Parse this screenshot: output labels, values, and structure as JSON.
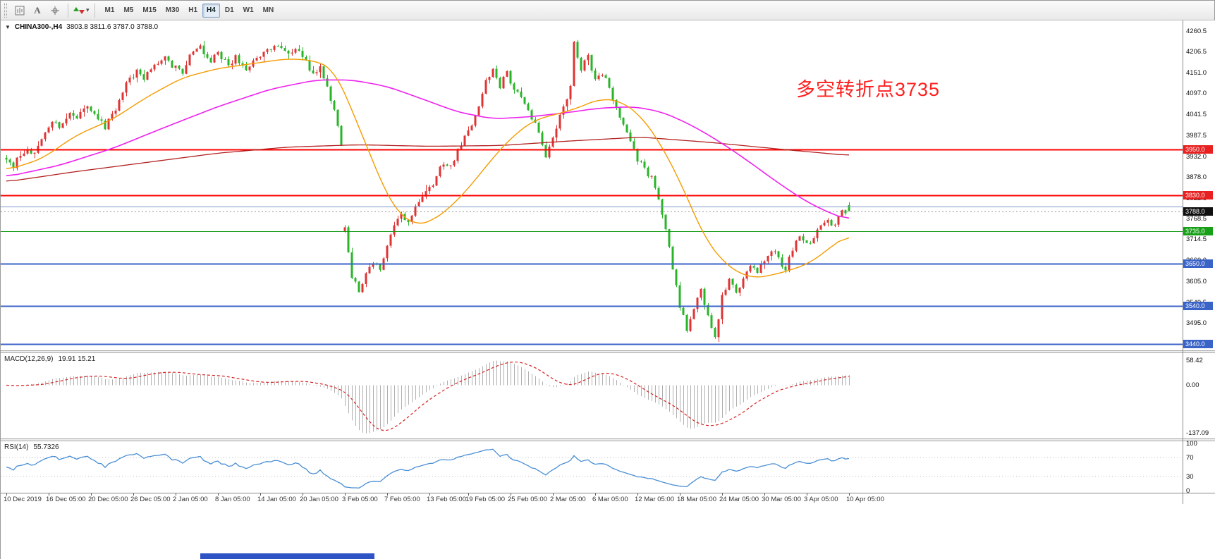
{
  "toolbar": {
    "timeframes": [
      "M1",
      "M5",
      "M15",
      "M30",
      "H1",
      "H4",
      "D1",
      "W1",
      "MN"
    ],
    "active_timeframe": "H4"
  },
  "header": {
    "collapse_icon": "▼",
    "symbol": "CHINA300-,H4",
    "quote": "3803.8 3811.6 3787.0 3788.0"
  },
  "annotation": {
    "text": "多空转折点3735",
    "color": "#ff1f1f"
  },
  "price_axis": {
    "ticks": [
      4260.5,
      4206.5,
      4151.0,
      4097.0,
      4041.5,
      3987.5,
      3932.0,
      3878.0,
      3822.5,
      3768.5,
      3714.5,
      3660.0,
      3605.0,
      3549.5,
      3495.0,
      3440.0
    ],
    "badges": [
      {
        "label": "3950.0",
        "price": 3950.0,
        "bg": "#e82020"
      },
      {
        "label": "3830.0",
        "price": 3830.0,
        "bg": "#e82020"
      },
      {
        "label": "3788.0",
        "price": 3788.0,
        "bg": "#101010"
      },
      {
        "label": "3735.0",
        "price": 3735.0,
        "bg": "#17a017"
      },
      {
        "label": "3650.0",
        "price": 3650.0,
        "bg": "#3a63c8"
      },
      {
        "label": "3540.0",
        "price": 3540.0,
        "bg": "#3a63c8"
      },
      {
        "label": "3440.0",
        "price": 3440.0,
        "bg": "#3a63c8"
      }
    ]
  },
  "chart_data": {
    "type": "candlestick",
    "symbol": "CHINA300-",
    "timeframe": "H4",
    "bars": 240,
    "view_price_range": [
      3423,
      4288
    ],
    "last_bar_ohlc": {
      "open": 3803.8,
      "high": 3811.6,
      "low": 3787.0,
      "close": 3788.0
    },
    "current_price": 3788.0,
    "candle_colors": {
      "bull": "#df3434",
      "bear": "#2ab42a"
    },
    "price_close_keyframes": [
      [
        0,
        3928
      ],
      [
        2,
        3906
      ],
      [
        4,
        3938
      ],
      [
        6,
        3952
      ],
      [
        8,
        3934
      ],
      [
        11,
        3988
      ],
      [
        13,
        4028
      ],
      [
        15,
        4010
      ],
      [
        18,
        4050
      ],
      [
        20,
        4034
      ],
      [
        23,
        4058
      ],
      [
        26,
        4036
      ],
      [
        28,
        4008
      ],
      [
        31,
        4058
      ],
      [
        34,
        4122
      ],
      [
        37,
        4152
      ],
      [
        39,
        4138
      ],
      [
        42,
        4165
      ],
      [
        45,
        4198
      ],
      [
        47,
        4172
      ],
      [
        50,
        4150
      ],
      [
        52,
        4192
      ],
      [
        55,
        4215
      ],
      [
        58,
        4178
      ],
      [
        60,
        4205
      ],
      [
        63,
        4168
      ],
      [
        65,
        4192
      ],
      [
        68,
        4158
      ],
      [
        71,
        4185
      ],
      [
        74,
        4212
      ],
      [
        77,
        4228
      ],
      [
        80,
        4198
      ],
      [
        82,
        4215
      ],
      [
        85,
        4178
      ],
      [
        87,
        4148
      ],
      [
        89,
        4168
      ],
      [
        91,
        4118
      ],
      [
        93,
        4052
      ],
      [
        95,
        3962
      ],
      [
        96,
        3738
      ],
      [
        98,
        3618
      ],
      [
        100,
        3582
      ],
      [
        102,
        3625
      ],
      [
        104,
        3652
      ],
      [
        106,
        3638
      ],
      [
        108,
        3692
      ],
      [
        110,
        3752
      ],
      [
        112,
        3775
      ],
      [
        114,
        3758
      ],
      [
        116,
        3798
      ],
      [
        118,
        3822
      ],
      [
        120,
        3848
      ],
      [
        122,
        3878
      ],
      [
        124,
        3918
      ],
      [
        126,
        3902
      ],
      [
        128,
        3948
      ],
      [
        130,
        3982
      ],
      [
        132,
        4018
      ],
      [
        134,
        4062
      ],
      [
        136,
        4135
      ],
      [
        138,
        4158
      ],
      [
        140,
        4118
      ],
      [
        142,
        4148
      ],
      [
        144,
        4108
      ],
      [
        146,
        4082
      ],
      [
        148,
        4052
      ],
      [
        150,
        4018
      ],
      [
        152,
        3958
      ],
      [
        153,
        3932
      ],
      [
        155,
        3982
      ],
      [
        157,
        4035
      ],
      [
        158,
        4058
      ],
      [
        160,
        4118
      ],
      [
        161,
        4228
      ],
      [
        163,
        4162
      ],
      [
        165,
        4192
      ],
      [
        167,
        4128
      ],
      [
        169,
        4152
      ],
      [
        171,
        4108
      ],
      [
        173,
        4062
      ],
      [
        175,
        4018
      ],
      [
        177,
        3978
      ],
      [
        179,
        3918
      ],
      [
        181,
        3902
      ],
      [
        183,
        3872
      ],
      [
        185,
        3818
      ],
      [
        187,
        3748
      ],
      [
        189,
        3638
      ],
      [
        191,
        3542
      ],
      [
        193,
        3478
      ],
      [
        195,
        3528
      ],
      [
        197,
        3582
      ],
      [
        199,
        3508
      ],
      [
        201,
        3458
      ],
      [
        203,
        3562
      ],
      [
        205,
        3608
      ],
      [
        207,
        3572
      ],
      [
        209,
        3612
      ],
      [
        211,
        3652
      ],
      [
        213,
        3628
      ],
      [
        215,
        3662
      ],
      [
        217,
        3688
      ],
      [
        219,
        3662
      ],
      [
        221,
        3638
      ],
      [
        223,
        3688
      ],
      [
        225,
        3718
      ],
      [
        227,
        3698
      ],
      [
        229,
        3722
      ],
      [
        231,
        3752
      ],
      [
        233,
        3768
      ],
      [
        235,
        3748
      ],
      [
        237,
        3790
      ],
      [
        239,
        3788
      ]
    ],
    "horizontal_lines": [
      {
        "price": 3950.0,
        "color": "#fe0000",
        "width": 2
      },
      {
        "price": 3830.0,
        "color": "#fe0000",
        "width": 2
      },
      {
        "price": 3800.0,
        "color": "#7c96c8",
        "width": 1
      },
      {
        "price": 3735.0,
        "color": "#129912",
        "width": 1
      },
      {
        "price": 3650.0,
        "color": "#3a63c8",
        "width": 2
      },
      {
        "price": 3540.0,
        "color": "#3a63c8",
        "width": 2
      },
      {
        "price": 3440.0,
        "color": "#3a63c8",
        "width": 2
      }
    ],
    "moving_averages": [
      {
        "name": "ma-slow-darkred",
        "color": "#b22222",
        "width": 1.3,
        "keyframes": [
          [
            0,
            3865
          ],
          [
            20,
            3892
          ],
          [
            40,
            3916
          ],
          [
            60,
            3940
          ],
          [
            80,
            3956
          ],
          [
            100,
            3962
          ],
          [
            120,
            3958
          ],
          [
            140,
            3960
          ],
          [
            160,
            3972
          ],
          [
            180,
            3982
          ],
          [
            200,
            3968
          ],
          [
            220,
            3950
          ],
          [
            239,
            3934
          ]
        ]
      },
      {
        "name": "ma-medium-magenta",
        "color": "#ee22ee",
        "width": 1.6,
        "keyframes": [
          [
            0,
            3878
          ],
          [
            15,
            3908
          ],
          [
            30,
            3952
          ],
          [
            45,
            4008
          ],
          [
            60,
            4062
          ],
          [
            75,
            4108
          ],
          [
            88,
            4132
          ],
          [
            98,
            4132
          ],
          [
            108,
            4115
          ],
          [
            118,
            4082
          ],
          [
            128,
            4048
          ],
          [
            138,
            4030
          ],
          [
            148,
            4035
          ],
          [
            158,
            4045
          ],
          [
            168,
            4058
          ],
          [
            178,
            4062
          ],
          [
            186,
            4048
          ],
          [
            194,
            4015
          ],
          [
            202,
            3972
          ],
          [
            210,
            3922
          ],
          [
            218,
            3868
          ],
          [
            226,
            3818
          ],
          [
            233,
            3785
          ],
          [
            239,
            3765
          ]
        ]
      },
      {
        "name": "ma-fast-orange",
        "color": "#f59b00",
        "width": 1.4,
        "keyframes": [
          [
            0,
            3895
          ],
          [
            10,
            3925
          ],
          [
            20,
            3988
          ],
          [
            30,
            4028
          ],
          [
            40,
            4088
          ],
          [
            50,
            4138
          ],
          [
            60,
            4162
          ],
          [
            70,
            4175
          ],
          [
            80,
            4188
          ],
          [
            88,
            4182
          ],
          [
            93,
            4158
          ],
          [
            96,
            4098
          ],
          [
            100,
            4008
          ],
          [
            104,
            3918
          ],
          [
            108,
            3828
          ],
          [
            112,
            3775
          ],
          [
            116,
            3752
          ],
          [
            120,
            3758
          ],
          [
            126,
            3798
          ],
          [
            132,
            3858
          ],
          [
            138,
            3928
          ],
          [
            144,
            3988
          ],
          [
            150,
            4028
          ],
          [
            156,
            4042
          ],
          [
            162,
            4058
          ],
          [
            168,
            4082
          ],
          [
            174,
            4078
          ],
          [
            180,
            4038
          ],
          [
            186,
            3958
          ],
          [
            192,
            3848
          ],
          [
            198,
            3718
          ],
          [
            204,
            3648
          ],
          [
            208,
            3625
          ],
          [
            212,
            3612
          ],
          [
            216,
            3618
          ],
          [
            222,
            3632
          ],
          [
            228,
            3652
          ],
          [
            234,
            3695
          ],
          [
            239,
            3728
          ]
        ]
      }
    ],
    "time_labels": [
      "10 Dec 2019",
      "16 Dec 05:00",
      "20 Dec 05:00",
      "26 Dec 05:00",
      "2 Jan 05:00",
      "8 Jan 05:00",
      "14 Jan 05:00",
      "20 Jan 05:00",
      "3 Feb 05:00",
      "7 Feb 05:00",
      "13 Feb 05:00",
      "19 Feb 05:00",
      "25 Feb 05:00",
      "2 Mar 05:00",
      "6 Mar 05:00",
      "12 Mar 05:00",
      "18 Mar 05:00",
      "24 Mar 05:00",
      "30 Mar 05:00",
      "3 Apr 05:00",
      "10 Apr 05:00"
    ],
    "macd": {
      "label": "MACD(12,26,9)",
      "current": "19.91 15.21",
      "fast": 12,
      "slow": 26,
      "signal": 9,
      "axis_labels": [
        "58.42",
        "0.00",
        "-137.09"
      ],
      "histogram_color": "#b0b0b0",
      "signal_color": "#d42222"
    },
    "rsi": {
      "label": "RSI(14)",
      "current": "55.7326",
      "period": 14,
      "axis_labels": [
        100,
        70,
        30,
        0
      ],
      "levels": [
        70,
        30
      ],
      "line_color": "#4a8fd4",
      "level_color": "#bfbfbf"
    }
  },
  "misc": {
    "taskbar_fragment_color": "#2e53c4"
  }
}
